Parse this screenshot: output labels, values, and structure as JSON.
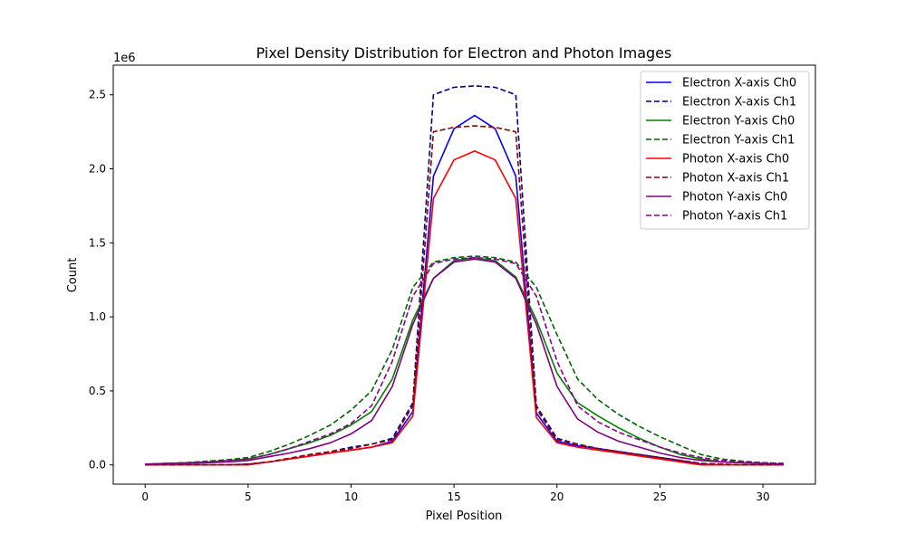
{
  "chart_data": {
    "type": "line",
    "title": "Pixel Density Distribution for Electron and Photon Images",
    "xlabel": "Pixel Position",
    "ylabel": "Count",
    "y_offset_label": "1e6",
    "xlim": [
      -1.55,
      32.55
    ],
    "ylim": [
      -0.13,
      2.7
    ],
    "x_ticks": [
      0,
      5,
      10,
      15,
      20,
      25,
      30
    ],
    "x_tick_labels": [
      "0",
      "5",
      "10",
      "15",
      "20",
      "25",
      "30"
    ],
    "y_ticks": [
      0,
      0.5,
      1.0,
      1.5,
      2.0,
      2.5
    ],
    "y_tick_labels": [
      "0.0",
      "0.5",
      "1.0",
      "1.5",
      "2.0",
      "2.5"
    ],
    "grid": false,
    "legend_position": "top-right",
    "x": [
      0,
      1,
      2,
      3,
      4,
      5,
      6,
      7,
      8,
      9,
      10,
      11,
      12,
      13,
      14,
      15,
      16,
      17,
      18,
      19,
      20,
      21,
      22,
      23,
      24,
      25,
      26,
      27,
      28,
      29,
      30,
      31
    ],
    "series": [
      {
        "name": "Electron X-axis Ch0",
        "color": "#0000ff",
        "dash": "solid",
        "values": [
          0,
          0,
          0,
          0,
          0,
          0.005,
          0.02,
          0.04,
          0.06,
          0.08,
          0.1,
          0.12,
          0.16,
          0.36,
          1.95,
          2.27,
          2.36,
          2.27,
          1.95,
          0.35,
          0.16,
          0.13,
          0.11,
          0.09,
          0.07,
          0.05,
          0.03,
          0.005,
          0,
          0,
          0,
          0
        ]
      },
      {
        "name": "Electron X-axis Ch1",
        "color": "#00008b",
        "dash": "dashed",
        "values": [
          0,
          0,
          0,
          0,
          0,
          0.005,
          0.02,
          0.045,
          0.07,
          0.09,
          0.12,
          0.14,
          0.18,
          0.42,
          2.5,
          2.55,
          2.56,
          2.55,
          2.5,
          0.4,
          0.18,
          0.14,
          0.11,
          0.09,
          0.07,
          0.05,
          0.03,
          0.01,
          0.005,
          0,
          0,
          0
        ]
      },
      {
        "name": "Electron Y-axis Ch0",
        "color": "#008000",
        "dash": "solid",
        "values": [
          0.005,
          0.01,
          0.015,
          0.02,
          0.03,
          0.04,
          0.07,
          0.11,
          0.15,
          0.2,
          0.27,
          0.36,
          0.58,
          0.98,
          1.26,
          1.38,
          1.4,
          1.38,
          1.27,
          0.98,
          0.62,
          0.42,
          0.33,
          0.25,
          0.18,
          0.12,
          0.07,
          0.04,
          0.02,
          0.015,
          0.01,
          0.005
        ]
      },
      {
        "name": "Electron Y-axis Ch1",
        "color": "#006400",
        "dash": "dashed",
        "values": [
          0.005,
          0.01,
          0.015,
          0.025,
          0.035,
          0.05,
          0.09,
          0.14,
          0.2,
          0.27,
          0.37,
          0.5,
          0.78,
          1.2,
          1.37,
          1.4,
          1.41,
          1.4,
          1.37,
          1.2,
          0.88,
          0.58,
          0.44,
          0.34,
          0.26,
          0.19,
          0.13,
          0.07,
          0.04,
          0.025,
          0.015,
          0.01
        ]
      },
      {
        "name": "Photon X-axis Ch0",
        "color": "#ff0000",
        "dash": "solid",
        "values": [
          0,
          0,
          0,
          0,
          0,
          0,
          0.02,
          0.04,
          0.06,
          0.08,
          0.1,
          0.12,
          0.15,
          0.33,
          1.8,
          2.06,
          2.12,
          2.06,
          1.8,
          0.32,
          0.15,
          0.12,
          0.1,
          0.08,
          0.06,
          0.04,
          0.02,
          0,
          0,
          0,
          0,
          0
        ]
      },
      {
        "name": "Photon X-axis Ch1",
        "color": "#8b0000",
        "dash": "dashed",
        "values": [
          0,
          0,
          0,
          0,
          0,
          0.005,
          0.02,
          0.045,
          0.07,
          0.09,
          0.11,
          0.14,
          0.17,
          0.4,
          2.25,
          2.28,
          2.29,
          2.28,
          2.25,
          0.38,
          0.17,
          0.14,
          0.11,
          0.09,
          0.07,
          0.05,
          0.03,
          0.01,
          0.005,
          0,
          0,
          0
        ]
      },
      {
        "name": "Photon Y-axis Ch0",
        "color": "#800080",
        "dash": "solid",
        "values": [
          0.005,
          0.01,
          0.01,
          0.015,
          0.02,
          0.03,
          0.055,
          0.08,
          0.11,
          0.15,
          0.21,
          0.3,
          0.53,
          0.95,
          1.26,
          1.37,
          1.39,
          1.37,
          1.26,
          0.95,
          0.53,
          0.31,
          0.22,
          0.16,
          0.12,
          0.08,
          0.05,
          0.03,
          0.02,
          0.015,
          0.01,
          0.005
        ]
      },
      {
        "name": "Photon Y-axis Ch1",
        "color": "#8b008b",
        "dash": "dashed",
        "values": [
          0.005,
          0.01,
          0.015,
          0.02,
          0.03,
          0.04,
          0.07,
          0.11,
          0.16,
          0.21,
          0.28,
          0.4,
          0.7,
          1.14,
          1.36,
          1.39,
          1.4,
          1.39,
          1.36,
          1.14,
          0.7,
          0.4,
          0.29,
          0.22,
          0.17,
          0.12,
          0.08,
          0.05,
          0.03,
          0.02,
          0.015,
          0.01
        ]
      }
    ]
  }
}
